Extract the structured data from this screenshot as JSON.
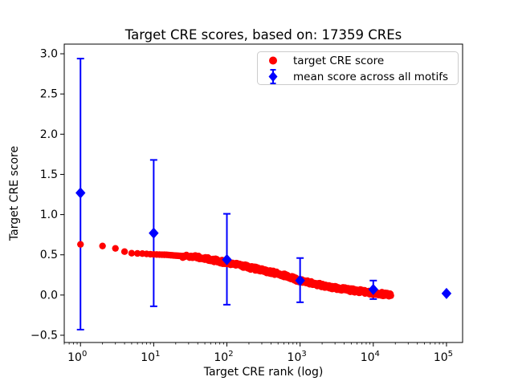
{
  "window": {
    "background": "#ffffff"
  },
  "chart_data": {
    "type": "scatter",
    "title": "Target CRE scores, based on: 17359 CREs",
    "xlabel": "Target CRE rank (log)",
    "ylabel": "Target CRE score",
    "xscale": "log",
    "xlim": [
      0.6,
      166000
    ],
    "ylim": [
      -0.59,
      3.12
    ],
    "grid": false,
    "xticks": [
      {
        "value": 1,
        "label": "10^0"
      },
      {
        "value": 10,
        "label": "10^1"
      },
      {
        "value": 100,
        "label": "10^2"
      },
      {
        "value": 1000,
        "label": "10^3"
      },
      {
        "value": 10000,
        "label": "10^4"
      },
      {
        "value": 100000,
        "label": "10^5"
      }
    ],
    "yticks": [
      {
        "value": -0.5,
        "label": "−0.5"
      },
      {
        "value": 0.0,
        "label": "0.0"
      },
      {
        "value": 0.5,
        "label": "0.5"
      },
      {
        "value": 1.0,
        "label": "1.0"
      },
      {
        "value": 1.5,
        "label": "1.5"
      },
      {
        "value": 2.0,
        "label": "2.0"
      },
      {
        "value": 2.5,
        "label": "2.5"
      },
      {
        "value": 3.0,
        "label": "3.0"
      }
    ],
    "legend": {
      "position": "upper right"
    },
    "series": [
      {
        "name": "target CRE score",
        "type": "scatter",
        "marker": "circle",
        "color": "#ff0000",
        "n_points_depicted": 17359,
        "anchor_points": [
          [
            1,
            0.63
          ],
          [
            2,
            0.61
          ],
          [
            3,
            0.58
          ],
          [
            4,
            0.54
          ],
          [
            5,
            0.52
          ],
          [
            7,
            0.515
          ],
          [
            10,
            0.505
          ],
          [
            15,
            0.5
          ],
          [
            20,
            0.49
          ],
          [
            30,
            0.48
          ],
          [
            50,
            0.455
          ],
          [
            70,
            0.43
          ],
          [
            100,
            0.4
          ],
          [
            150,
            0.37
          ],
          [
            200,
            0.345
          ],
          [
            300,
            0.31
          ],
          [
            500,
            0.265
          ],
          [
            700,
            0.225
          ],
          [
            1000,
            0.175
          ],
          [
            1500,
            0.145
          ],
          [
            2000,
            0.12
          ],
          [
            3000,
            0.09
          ],
          [
            5000,
            0.06
          ],
          [
            7000,
            0.045
          ],
          [
            10000,
            0.025
          ],
          [
            14000,
            0.01
          ],
          [
            17359,
            0.0
          ]
        ]
      },
      {
        "name": "mean score across all motifs",
        "type": "errorbar",
        "marker": "diamond",
        "color": "#0000ff",
        "points": [
          {
            "x": 1,
            "mean": 1.27,
            "err_lo": -0.43,
            "err_hi": 2.94
          },
          {
            "x": 10,
            "mean": 0.77,
            "err_lo": -0.14,
            "err_hi": 1.68
          },
          {
            "x": 100,
            "mean": 0.44,
            "err_lo": -0.12,
            "err_hi": 1.01
          },
          {
            "x": 1000,
            "mean": 0.18,
            "err_lo": -0.09,
            "err_hi": 0.46
          },
          {
            "x": 10000,
            "mean": 0.07,
            "err_lo": -0.05,
            "err_hi": 0.18
          },
          {
            "x": 100000,
            "mean": 0.02,
            "err_lo": 0.02,
            "err_hi": 0.02
          }
        ]
      }
    ]
  }
}
